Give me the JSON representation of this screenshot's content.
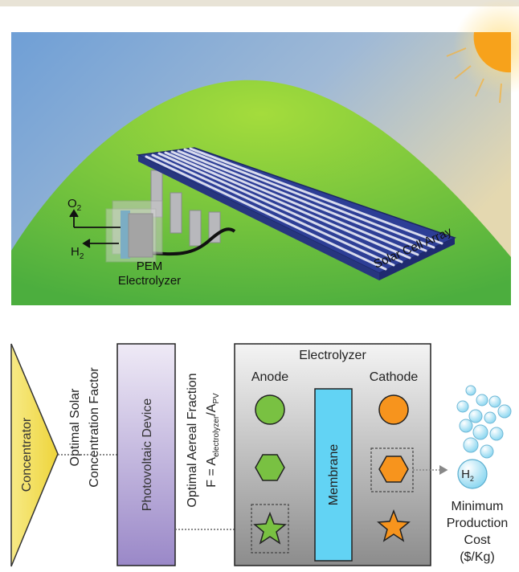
{
  "scene": {
    "labels": {
      "o2": "O",
      "o2_sub": "2",
      "h2": "H",
      "h2_sub": "2",
      "pem_line1": "PEM",
      "pem_line2": "Electrolyzer",
      "solar_array": "Solar Cell Array"
    }
  },
  "flow": {
    "concentrator": "Concentrator",
    "solar_factor_line1": "Optimal Solar",
    "solar_factor_line2": "Concentration Factor",
    "pv_device": "Photovoltaic Device",
    "aereal_line1": "Optimal Aereal Fraction",
    "aereal_formula_f": "F = A",
    "aereal_formula_sub1": "electrolyzer",
    "aereal_formula_slash": "/A",
    "aereal_formula_sub2": "PV",
    "electrolyzer": "Electrolyzer",
    "anode": "Anode",
    "cathode": "Cathode",
    "membrane": "Membrane",
    "h2": "H",
    "h2_sub": "2",
    "cost_line1": "Minimum",
    "cost_line2": "Production",
    "cost_line3": "Cost",
    "cost_line4": "($/Kg)"
  },
  "colors": {
    "sky_top": "#6f9fd6",
    "sky_right": "#dcd6b8",
    "sun": "#f7a21b",
    "hill": "#6cbf3a",
    "solar_panel": "#2d3e96",
    "concentrator": "#f3e15c",
    "pv_device": "#a999d0",
    "membrane": "#62d3f4",
    "anode_shape": "#79c142",
    "cathode_shape": "#f7941d"
  }
}
